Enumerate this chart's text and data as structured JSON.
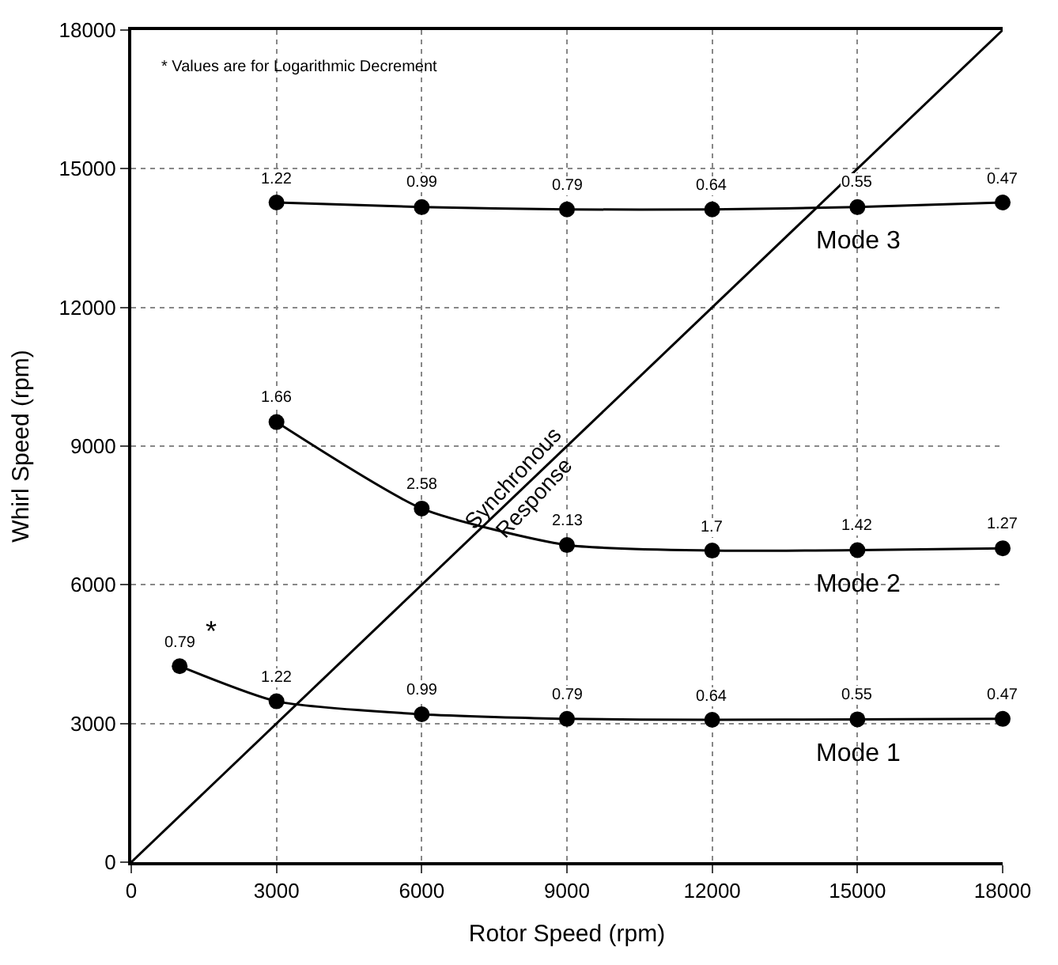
{
  "chart_data": {
    "type": "line",
    "xlabel": "Rotor Speed (rpm)",
    "ylabel": "Whirl Speed (rpm)",
    "xlim": [
      0,
      18000
    ],
    "ylim": [
      0,
      18000
    ],
    "xticks": [
      0,
      3000,
      6000,
      9000,
      12000,
      15000,
      18000
    ],
    "yticks": [
      0,
      3000,
      6000,
      9000,
      12000,
      15000,
      18000
    ],
    "grid": true,
    "legend": false,
    "line_style": "solid",
    "annotations": [
      "* Values are for Logarithmic Decrement",
      "*",
      {
        "text": "0.79",
        "x": 1000,
        "y": 4240
      },
      {
        "text": "1.22",
        "x": 3000,
        "y": 3480
      },
      {
        "text": "0.99",
        "x": 6000,
        "y": 3200
      },
      {
        "text": "0.79",
        "x": 9000,
        "y": 3100
      },
      {
        "text": "0.64",
        "x": 12000,
        "y": 3080
      },
      {
        "text": "0.55",
        "x": 15000,
        "y": 3090
      },
      {
        "text": "0.47",
        "x": 18000,
        "y": 3100
      },
      {
        "text": "1.66",
        "x": 3000,
        "y": 9520
      },
      {
        "text": "2.58",
        "x": 6000,
        "y": 7650
      },
      {
        "text": "2.13",
        "x": 9000,
        "y": 6860
      },
      {
        "text": "1.7",
        "x": 12000,
        "y": 6740
      },
      {
        "text": "1.42",
        "x": 15000,
        "y": 6750
      },
      {
        "text": "1.27",
        "x": 18000,
        "y": 6790
      },
      {
        "text": "1.22",
        "x": 3000,
        "y": 14270
      },
      {
        "text": "0.99",
        "x": 6000,
        "y": 14170
      },
      {
        "text": "0.79",
        "x": 9000,
        "y": 14120
      },
      {
        "text": "0.64",
        "x": 12000,
        "y": 14120
      },
      {
        "text": "0.55",
        "x": 15000,
        "y": 14170
      },
      {
        "text": "0.47",
        "x": 18000,
        "y": 14270
      }
    ],
    "series": [
      {
        "name": "Mode 1",
        "color": "#000000",
        "marker": "circle",
        "x": [
          1000,
          3000,
          6000,
          9000,
          12000,
          15000,
          18000
        ],
        "values": [
          4240,
          3480,
          3200,
          3100,
          3080,
          3090,
          3100
        ]
      },
      {
        "name": "Mode 2",
        "color": "#000000",
        "marker": "circle",
        "x": [
          3000,
          6000,
          9000,
          12000,
          15000,
          18000
        ],
        "values": [
          9520,
          7650,
          6860,
          6740,
          6750,
          6790
        ]
      },
      {
        "name": "Mode 3",
        "color": "#000000",
        "marker": "circle",
        "x": [
          3000,
          6000,
          9000,
          12000,
          15000,
          18000
        ],
        "values": [
          14270,
          14170,
          14120,
          14120,
          14170,
          14270
        ]
      },
      {
        "name": "Synchronous\nResponse",
        "color": "#000000",
        "marker": "none",
        "x": [
          0,
          18000
        ],
        "values": [
          0,
          18000
        ]
      }
    ]
  }
}
